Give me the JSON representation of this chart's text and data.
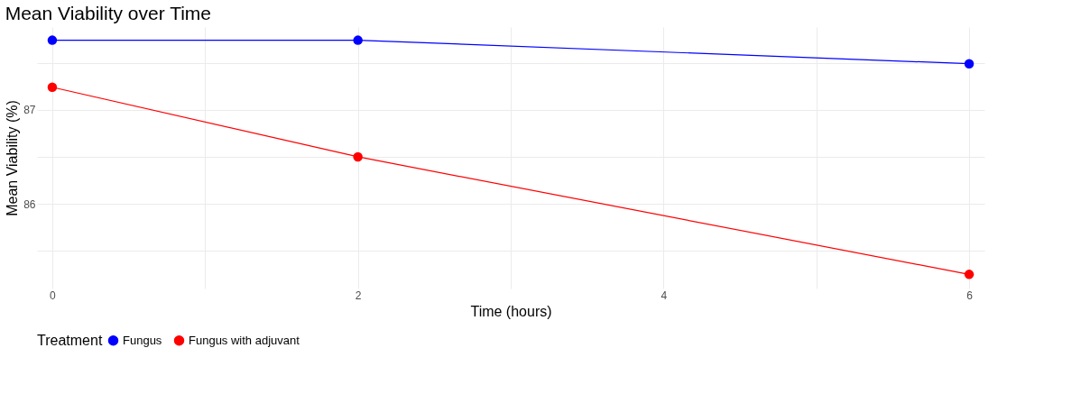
{
  "chart_data": {
    "type": "line",
    "title": "Mean Viability over Time",
    "xlabel": "Time (hours)",
    "ylabel": "Mean Viability (%)",
    "legend_title": "Treatment",
    "x": [
      0,
      2,
      6
    ],
    "series": [
      {
        "name": "Fungus",
        "color": "#0000ff",
        "values": [
          87.74,
          87.74,
          87.49
        ]
      },
      {
        "name": "Fungus with adjuvant",
        "color": "#ff0000",
        "values": [
          87.24,
          86.5,
          85.25
        ]
      }
    ],
    "xlim": [
      -0.1,
      6.1
    ],
    "ylim": [
      85.1,
      87.88
    ],
    "xticks": [
      0,
      {
        "value": 1,
        "label": null
      },
      2,
      {
        "value": 3,
        "label": null
      },
      4,
      {
        "value": 5,
        "label": null
      },
      6
    ],
    "yticks": [
      {
        "value": 85.5,
        "label": null
      },
      86,
      {
        "value": 86.5,
        "label": null
      },
      87,
      {
        "value": 87.5,
        "label": null
      }
    ],
    "grid": true,
    "legend": "bottom",
    "marker": "circle",
    "line_style": "solid"
  }
}
